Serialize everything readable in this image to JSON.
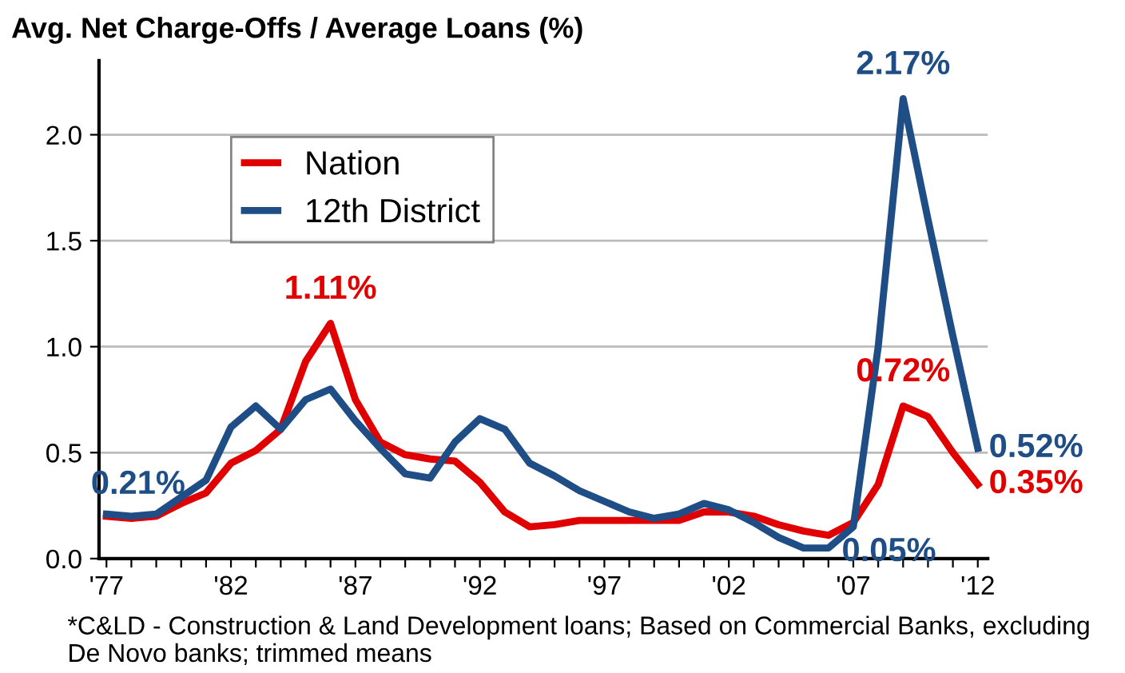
{
  "chart_data": {
    "type": "line",
    "title": "Avg. Net Charge-Offs / Average Loans (%)",
    "x": [
      1977,
      1978,
      1979,
      1980,
      1981,
      1982,
      1983,
      1984,
      1985,
      1986,
      1987,
      1988,
      1989,
      1990,
      1991,
      1992,
      1993,
      1994,
      1995,
      1996,
      1997,
      1998,
      1999,
      2000,
      2001,
      2002,
      2003,
      2004,
      2005,
      2006,
      2007,
      2008,
      2009,
      2010,
      2011,
      2012
    ],
    "series": [
      {
        "name": "Nation",
        "color": "#e00000",
        "values": [
          0.2,
          0.19,
          0.2,
          0.26,
          0.31,
          0.45,
          0.51,
          0.61,
          0.93,
          1.11,
          0.75,
          0.55,
          0.49,
          0.47,
          0.46,
          0.36,
          0.22,
          0.15,
          0.16,
          0.18,
          0.18,
          0.18,
          0.18,
          0.18,
          0.22,
          0.22,
          0.2,
          0.16,
          0.13,
          0.11,
          0.17,
          0.35,
          0.72,
          0.67,
          0.5,
          0.35
        ],
        "value_labels": [
          null,
          null,
          null,
          null,
          null,
          null,
          null,
          null,
          null,
          "1.11%",
          null,
          null,
          null,
          null,
          null,
          null,
          null,
          null,
          null,
          null,
          null,
          null,
          null,
          null,
          null,
          null,
          null,
          null,
          null,
          null,
          null,
          null,
          "0.72%",
          null,
          null,
          "0.35%"
        ]
      },
      {
        "name": "12th District",
        "color": "#1f4e87",
        "values": [
          0.21,
          0.2,
          0.21,
          0.29,
          0.37,
          0.62,
          0.72,
          0.61,
          0.75,
          0.8,
          0.65,
          0.52,
          0.4,
          0.38,
          0.55,
          0.66,
          0.61,
          0.45,
          0.39,
          0.32,
          0.27,
          0.22,
          0.19,
          0.21,
          0.26,
          0.23,
          0.17,
          0.1,
          0.05,
          0.05,
          0.15,
          1.0,
          2.17,
          1.6,
          1.05,
          0.52
        ],
        "value_labels": [
          "0.21%",
          null,
          null,
          null,
          null,
          null,
          null,
          null,
          null,
          null,
          null,
          null,
          null,
          null,
          null,
          null,
          null,
          null,
          null,
          null,
          null,
          null,
          null,
          null,
          null,
          null,
          null,
          null,
          null,
          "0.05%",
          null,
          null,
          "2.17%",
          null,
          null,
          "0.52%"
        ]
      }
    ],
    "xlim": [
      1976.7,
      2012.4
    ],
    "xticks": [
      {
        "value": 1977,
        "label": "'77"
      },
      {
        "value": 1978,
        "label": null
      },
      {
        "value": 1979,
        "label": null
      },
      {
        "value": 1980,
        "label": null
      },
      {
        "value": 1981,
        "label": null
      },
      {
        "value": 1982,
        "label": "'82"
      },
      {
        "value": 1983,
        "label": null
      },
      {
        "value": 1984,
        "label": null
      },
      {
        "value": 1985,
        "label": null
      },
      {
        "value": 1986,
        "label": null
      },
      {
        "value": 1987,
        "label": "'87"
      },
      {
        "value": 1988,
        "label": null
      },
      {
        "value": 1989,
        "label": null
      },
      {
        "value": 1990,
        "label": null
      },
      {
        "value": 1991,
        "label": null
      },
      {
        "value": 1992,
        "label": "'92"
      },
      {
        "value": 1993,
        "label": null
      },
      {
        "value": 1994,
        "label": null
      },
      {
        "value": 1995,
        "label": null
      },
      {
        "value": 1996,
        "label": null
      },
      {
        "value": 1997,
        "label": "'97"
      },
      {
        "value": 1998,
        "label": null
      },
      {
        "value": 1999,
        "label": null
      },
      {
        "value": 2000,
        "label": null
      },
      {
        "value": 2001,
        "label": null
      },
      {
        "value": 2002,
        "label": "'02"
      },
      {
        "value": 2003,
        "label": null
      },
      {
        "value": 2004,
        "label": null
      },
      {
        "value": 2005,
        "label": null
      },
      {
        "value": 2006,
        "label": null
      },
      {
        "value": 2007,
        "label": "'07"
      },
      {
        "value": 2008,
        "label": null
      },
      {
        "value": 2009,
        "label": null
      },
      {
        "value": 2010,
        "label": null
      },
      {
        "value": 2011,
        "label": null
      },
      {
        "value": 2012,
        "label": "'12"
      }
    ],
    "ylim": [
      0,
      2.35
    ],
    "yticks": [
      {
        "value": 0,
        "label": "0.0"
      },
      {
        "value": 0.5,
        "label": "0.5"
      },
      {
        "value": 1.0,
        "label": "1.0"
      },
      {
        "value": 1.5,
        "label": "1.5"
      },
      {
        "value": 2.0,
        "label": "2.0"
      }
    ],
    "grid": "y",
    "legend": "top left",
    "marker": "none",
    "line_style": "solid",
    "annotations": [
      "*C&LD - Construction & Land Development loans; Based on Commercial Banks, excluding De Novo banks; trimmed means"
    ]
  }
}
